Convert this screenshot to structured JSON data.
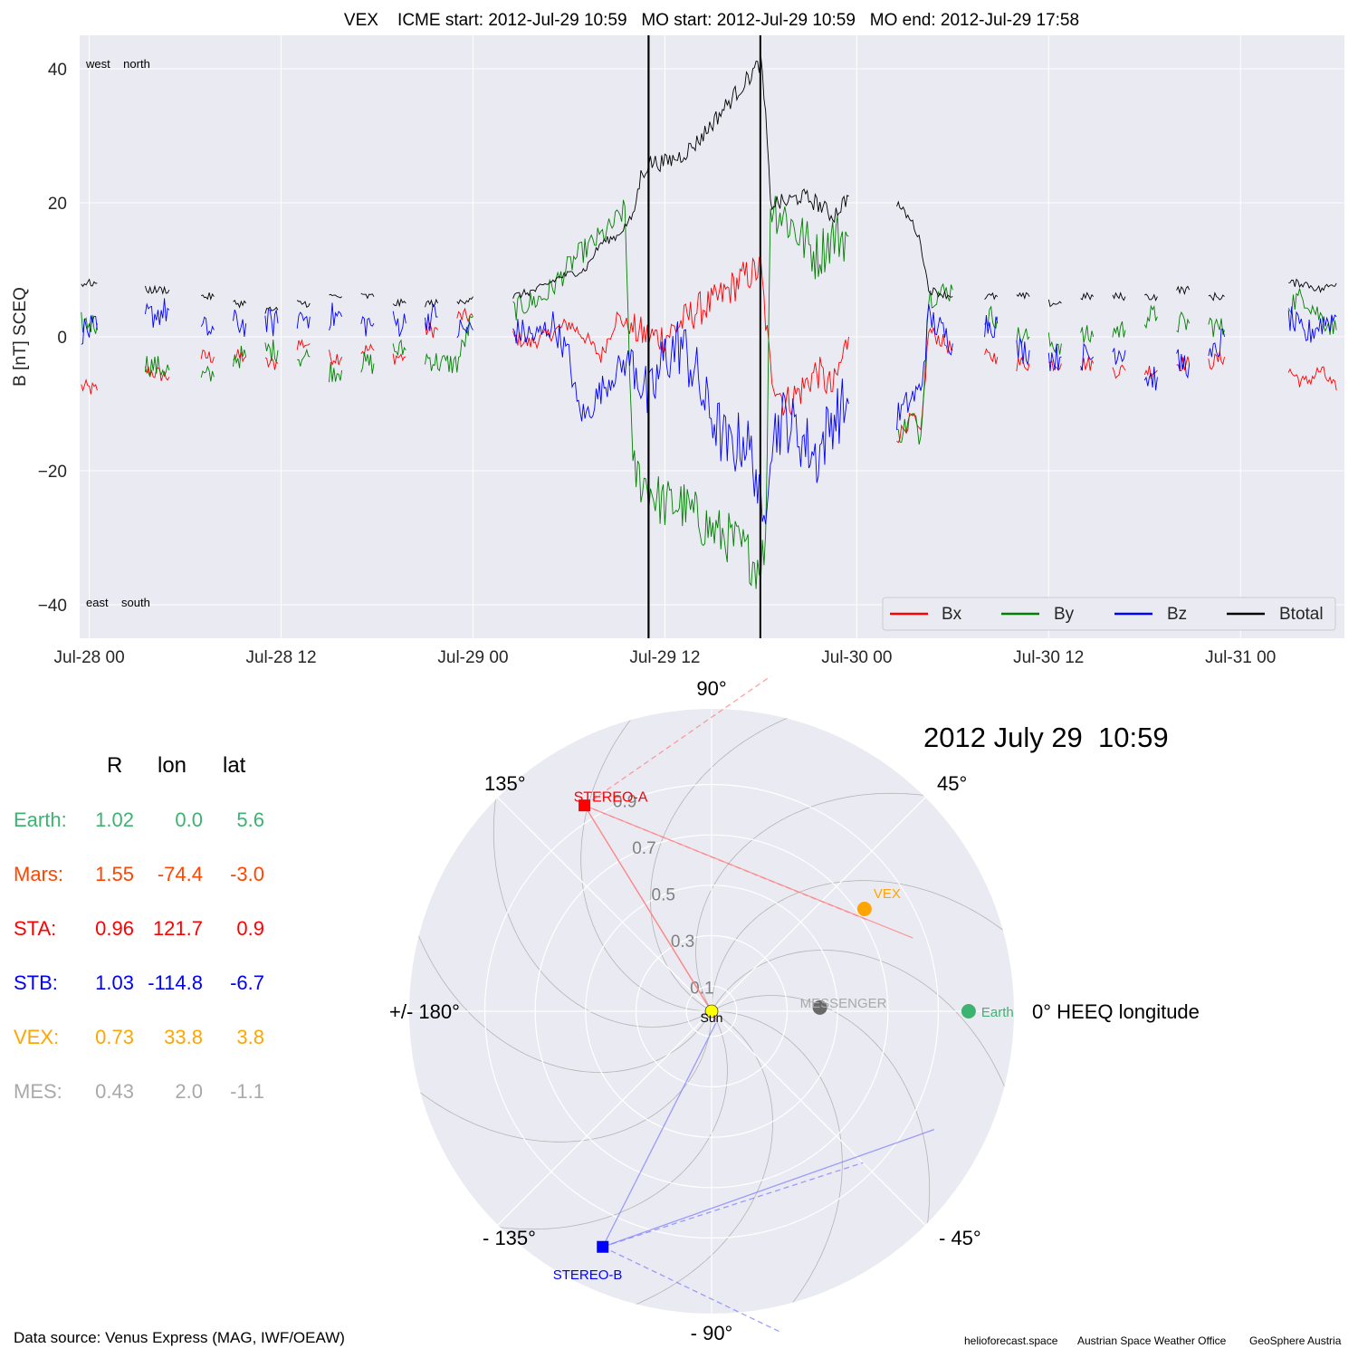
{
  "chart_data": [
    {
      "type": "line",
      "title": "VEX    ICME start: 2012-Jul-29 10:59   MO start: 2012-Jul-29 10:59   MO end: 2012-Jul-29 17:58",
      "ylabel": "B [nT] SCEQ",
      "xlabel": "",
      "xlim_hours": [
        -0.6,
        78.5
      ],
      "ylim": [
        -45,
        45
      ],
      "x_unit": "hours from 2012-07-28 00:00",
      "x_ticks": [
        {
          "h": 0,
          "label": "Jul-28 00"
        },
        {
          "h": 12,
          "label": "Jul-28 12"
        },
        {
          "h": 24,
          "label": "Jul-29 00"
        },
        {
          "h": 36,
          "label": "Jul-29 12"
        },
        {
          "h": 48,
          "label": "Jul-30 00"
        },
        {
          "h": 60,
          "label": "Jul-30 12"
        },
        {
          "h": 72,
          "label": "Jul-31 00"
        }
      ],
      "y_ticks": [
        -40,
        -20,
        0,
        20,
        40
      ],
      "corner_labels": {
        "top": "west    north",
        "bottom": "east    south"
      },
      "event_lines_hours": [
        34.98,
        34.98,
        41.97
      ],
      "grid": true,
      "legend_position": "lower-right",
      "series": [
        {
          "name": "Bx",
          "color": "#ff0000",
          "points": [
            [
              -0.5,
              -7.5
            ],
            [
              0.5,
              -8
            ],
            [
              3.5,
              -5
            ],
            [
              5,
              -6
            ],
            [
              7,
              -3
            ],
            [
              9,
              -3
            ],
            [
              11,
              -4
            ],
            [
              13,
              -1
            ],
            [
              15,
              -3
            ],
            [
              17,
              -2
            ],
            [
              19,
              -3
            ],
            [
              21,
              1
            ],
            [
              23,
              3
            ],
            [
              24,
              3
            ],
            [
              26.5,
              0
            ],
            [
              27.5,
              -1
            ],
            [
              28.5,
              0
            ],
            [
              30,
              2
            ],
            [
              31,
              0
            ],
            [
              32,
              -3
            ],
            [
              33,
              3
            ],
            [
              34,
              1
            ],
            [
              35,
              0
            ],
            [
              36,
              0
            ],
            [
              37,
              2
            ],
            [
              38,
              4
            ],
            [
              39,
              5
            ],
            [
              40,
              7
            ],
            [
              41,
              9
            ],
            [
              42,
              10
            ],
            [
              42.6,
              -5
            ],
            [
              43.5,
              -10
            ],
            [
              44.5,
              -8
            ],
            [
              45.5,
              -5
            ],
            [
              46.5,
              -8
            ],
            [
              47.5,
              0
            ],
            [
              50.5,
              -15
            ],
            [
              51.5,
              -12
            ],
            [
              52,
              -15
            ],
            [
              52.5,
              1
            ],
            [
              54,
              -2
            ],
            [
              56,
              -3
            ],
            [
              58,
              -4
            ],
            [
              60,
              -4
            ],
            [
              62,
              -4
            ],
            [
              64,
              -5
            ],
            [
              66,
              -5
            ],
            [
              68,
              -4
            ],
            [
              70,
              -4
            ],
            [
              71,
              -3
            ],
            [
              75,
              -5
            ],
            [
              76,
              -7
            ],
            [
              77,
              -5
            ],
            [
              78,
              -8
            ]
          ]
        },
        {
          "name": "By",
          "color": "#008000",
          "points": [
            [
              -0.5,
              2
            ],
            [
              0.5,
              2
            ],
            [
              3.5,
              -4
            ],
            [
              5,
              -5
            ],
            [
              7,
              -6
            ],
            [
              9,
              -3
            ],
            [
              11,
              -2
            ],
            [
              13,
              -3
            ],
            [
              15,
              -5
            ],
            [
              17,
              -4
            ],
            [
              19,
              -2
            ],
            [
              21,
              -3
            ],
            [
              22,
              -4
            ],
            [
              23,
              -4
            ],
            [
              24,
              3
            ],
            [
              26.5,
              4
            ],
            [
              27.5,
              5
            ],
            [
              28.5,
              6
            ],
            [
              29.5,
              9
            ],
            [
              30.5,
              12
            ],
            [
              31.5,
              14
            ],
            [
              32.5,
              16
            ],
            [
              33.5,
              19
            ],
            [
              34,
              -20
            ],
            [
              34.8,
              -22
            ],
            [
              35.5,
              -24
            ],
            [
              36,
              -25
            ],
            [
              37,
              -25
            ],
            [
              38,
              -27
            ],
            [
              39,
              -29
            ],
            [
              40,
              -30
            ],
            [
              41,
              -32
            ],
            [
              41.7,
              -34
            ],
            [
              42.3,
              -32
            ],
            [
              42.6,
              20
            ],
            [
              43.5,
              18
            ],
            [
              44.5,
              15
            ],
            [
              45.5,
              12
            ],
            [
              46.5,
              15
            ],
            [
              47.5,
              15
            ],
            [
              50.5,
              -15
            ],
            [
              51.5,
              -12
            ],
            [
              52,
              -15
            ],
            [
              52.5,
              6
            ],
            [
              54,
              7
            ],
            [
              56,
              3
            ],
            [
              58,
              0
            ],
            [
              60,
              -1
            ],
            [
              62,
              0
            ],
            [
              64,
              1
            ],
            [
              66,
              3
            ],
            [
              68,
              2
            ],
            [
              70,
              2
            ],
            [
              71,
              1
            ],
            [
              75,
              5
            ],
            [
              76,
              6
            ],
            [
              77,
              3
            ],
            [
              78,
              1
            ]
          ]
        },
        {
          "name": "Bz",
          "color": "#0000ff",
          "points": [
            [
              -0.5,
              1
            ],
            [
              0.5,
              1
            ],
            [
              3.5,
              3
            ],
            [
              5,
              4
            ],
            [
              7,
              1
            ],
            [
              9,
              2
            ],
            [
              11,
              2
            ],
            [
              13,
              3
            ],
            [
              15,
              3
            ],
            [
              17,
              2
            ],
            [
              19,
              2
            ],
            [
              21,
              3
            ],
            [
              23,
              1
            ],
            [
              24,
              1
            ],
            [
              26.5,
              1
            ],
            [
              28,
              0
            ],
            [
              29,
              2
            ],
            [
              30,
              -3
            ],
            [
              30.5,
              -10
            ],
            [
              31,
              -12
            ],
            [
              32,
              -8
            ],
            [
              33,
              -5
            ],
            [
              34,
              -3
            ],
            [
              35,
              -10
            ],
            [
              36,
              -3
            ],
            [
              37,
              -1
            ],
            [
              38,
              -6
            ],
            [
              38.5,
              -10
            ],
            [
              39,
              -12
            ],
            [
              40,
              -17
            ],
            [
              41,
              -15
            ],
            [
              41.7,
              -20
            ],
            [
              42.1,
              -30
            ],
            [
              42.6,
              -15
            ],
            [
              43.5,
              -12
            ],
            [
              44.5,
              -15
            ],
            [
              45.5,
              -18
            ],
            [
              46.5,
              -12
            ],
            [
              47.5,
              -10
            ],
            [
              50.5,
              -12
            ],
            [
              51.5,
              -9
            ],
            [
              52,
              -8
            ],
            [
              52.5,
              3
            ],
            [
              54,
              -1
            ],
            [
              56,
              2
            ],
            [
              58,
              -2
            ],
            [
              60,
              -3
            ],
            [
              62,
              -3
            ],
            [
              64,
              -2
            ],
            [
              66,
              -6
            ],
            [
              68,
              -4
            ],
            [
              70,
              -4
            ],
            [
              71,
              0
            ],
            [
              75,
              3
            ],
            [
              76,
              0
            ],
            [
              77,
              2
            ],
            [
              78,
              3
            ]
          ]
        },
        {
          "name": "Btotal",
          "color": "#000000",
          "points": [
            [
              -0.5,
              8
            ],
            [
              0.5,
              8
            ],
            [
              3.5,
              7
            ],
            [
              5,
              7
            ],
            [
              7,
              6
            ],
            [
              9,
              5
            ],
            [
              11,
              4
            ],
            [
              13,
              5
            ],
            [
              15,
              6
            ],
            [
              17,
              6
            ],
            [
              19,
              5
            ],
            [
              21,
              5
            ],
            [
              23,
              5
            ],
            [
              24,
              6
            ],
            [
              26.5,
              6
            ],
            [
              28,
              7
            ],
            [
              29.5,
              9
            ],
            [
              31,
              10
            ],
            [
              32,
              14
            ],
            [
              33,
              15
            ],
            [
              34,
              18
            ],
            [
              34.5,
              24
            ],
            [
              35,
              26
            ],
            [
              36,
              26
            ],
            [
              37,
              27
            ],
            [
              38,
              29
            ],
            [
              39,
              32
            ],
            [
              40,
              35
            ],
            [
              41,
              38
            ],
            [
              42,
              41
            ],
            [
              42.3,
              33
            ],
            [
              42.6,
              20
            ],
            [
              43.5,
              20
            ],
            [
              44.5,
              21
            ],
            [
              45.5,
              20
            ],
            [
              46.5,
              18
            ],
            [
              47.5,
              21
            ],
            [
              50.5,
              20
            ],
            [
              51.5,
              17
            ],
            [
              52,
              14
            ],
            [
              52.5,
              7
            ],
            [
              54,
              6
            ],
            [
              56,
              6
            ],
            [
              58,
              6
            ],
            [
              60,
              5
            ],
            [
              62,
              6
            ],
            [
              64,
              6
            ],
            [
              66,
              6
            ],
            [
              68,
              7
            ],
            [
              70,
              6
            ],
            [
              71,
              6
            ],
            [
              75,
              8
            ],
            [
              76,
              8
            ],
            [
              77,
              7
            ],
            [
              78,
              8
            ]
          ]
        }
      ]
    },
    {
      "type": "scatter",
      "subtype": "polar",
      "title": "2012 July 29  10:59",
      "angle_labels": [
        {
          "deg": 0,
          "label": "0° HEEQ longitude"
        },
        {
          "deg": 45,
          "label": "45°"
        },
        {
          "deg": 90,
          "label": "90°"
        },
        {
          "deg": 135,
          "label": "135°"
        },
        {
          "deg": 180,
          "label": "+/- 180°"
        },
        {
          "deg": -135,
          "label": "- 135°"
        },
        {
          "deg": -90,
          "label": "- 90°"
        },
        {
          "deg": -45,
          "label": "- 45°"
        }
      ],
      "radial_max": 1.2,
      "radial_ticks": [
        {
          "r": 0.1,
          "label": "0.1"
        },
        {
          "r": 0.3,
          "label": "0.3"
        },
        {
          "r": 0.5,
          "label": "0.5"
        },
        {
          "r": 0.7,
          "label": "0.7"
        },
        {
          "r": 0.9,
          "label": "0.9"
        }
      ],
      "bodies": [
        {
          "name": "Sun",
          "label": "Sun",
          "r": 0.0,
          "lon": 0.0,
          "color": "#ffff00",
          "marker": "circle"
        },
        {
          "name": "Earth",
          "label": "Earth",
          "r": 1.02,
          "lon": 0.0,
          "color": "#3cb371",
          "marker": "circle"
        },
        {
          "name": "VEX",
          "label": "VEX",
          "r": 0.73,
          "lon": 33.8,
          "color": "#ffa500",
          "marker": "circle"
        },
        {
          "name": "MESSENGER",
          "label": "MESSENGER",
          "r": 0.43,
          "lon": 2.0,
          "color": "#696969",
          "marker": "circle"
        },
        {
          "name": "STEREO-A",
          "label": "STEREO-A",
          "r": 0.96,
          "lon": 121.7,
          "color": "#ff0000",
          "marker": "square"
        },
        {
          "name": "STEREO-B",
          "label": "STEREO-B",
          "r": 1.03,
          "lon": -114.8,
          "color": "#0000ff",
          "marker": "square"
        }
      ]
    }
  ],
  "position_table": {
    "headers": {
      "r": "R",
      "lon": "lon",
      "lat": "lat"
    },
    "rows": [
      {
        "name": "Earth:",
        "r": "1.02",
        "lon": "0.0",
        "lat": "5.6",
        "color": "#3cb371"
      },
      {
        "name": "Mars:",
        "r": "1.55",
        "lon": "-74.4",
        "lat": "-3.0",
        "color": "#ff4500"
      },
      {
        "name": "STA:",
        "r": "0.96",
        "lon": "121.7",
        "lat": "0.9",
        "color": "#ff0000"
      },
      {
        "name": "STB:",
        "r": "1.03",
        "lon": "-114.8",
        "lat": "-6.7",
        "color": "#0000ff"
      },
      {
        "name": "VEX:",
        "r": "0.73",
        "lon": "33.8",
        "lat": "3.8",
        "color": "#ffa500"
      },
      {
        "name": "MES:",
        "r": "0.43",
        "lon": "2.0",
        "lat": "-1.1",
        "color": "#a9a9a9"
      }
    ]
  },
  "footer": {
    "data_source": "Data source: Venus Express (MAG, IWF/OEAW)",
    "credits": [
      "helioforecast.space",
      "Austrian Space Weather Office",
      "GeoSphere Austria"
    ]
  }
}
